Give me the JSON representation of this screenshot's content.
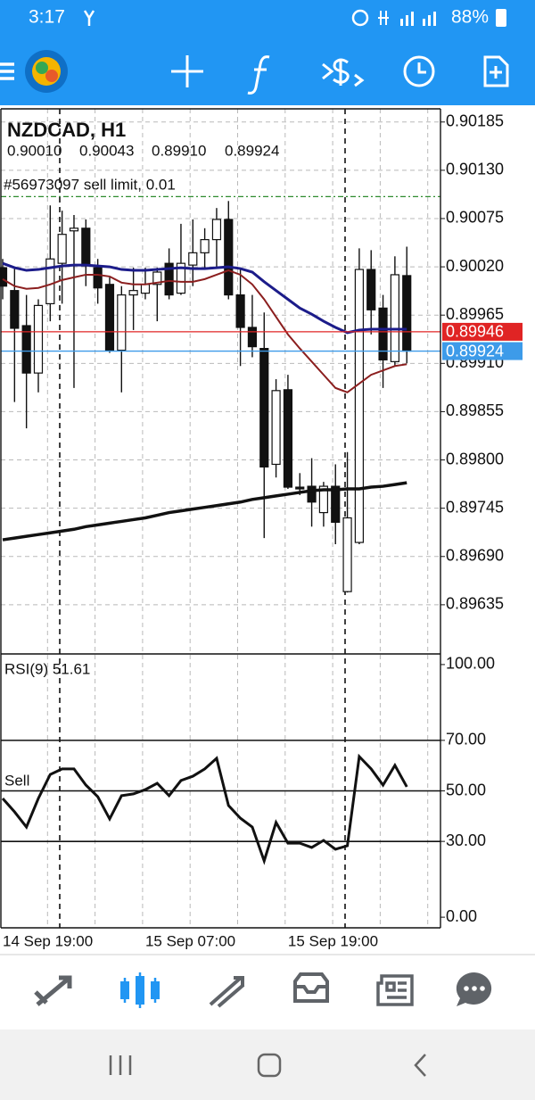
{
  "status_bar": {
    "time": "3:17",
    "battery": "88%"
  },
  "chart": {
    "type": "candlestick",
    "title": "NZDCAD, H1",
    "ohlc_labels": [
      "0.90010",
      "0.90043",
      "0.89910",
      "0.89924"
    ],
    "order_label": "#56973097 sell limit, 0.01",
    "order_price": 0.901,
    "ylim": [
      0.8958,
      0.902
    ],
    "yticks": [
      0.90185,
      {
        "value": 0.9013,
        "label": "0.90130"
      },
      0.90075,
      {
        "value": 0.9002,
        "label": "0.90020"
      },
      0.89965,
      {
        "value": 0.8991,
        "label": "0.89910"
      },
      0.89855,
      {
        "value": 0.898,
        "label": "0.89800"
      },
      0.89745,
      {
        "value": 0.8969,
        "label": "0.89690"
      },
      0.89635
    ],
    "grid": true,
    "categories": [
      "14 Sep 19:00",
      null,
      null,
      null,
      null,
      null,
      null,
      null,
      null,
      null,
      null,
      null,
      "15 Sep 07:00",
      null,
      null,
      null,
      null,
      null,
      null,
      null,
      null,
      null,
      null,
      null,
      "15 Sep 19:00",
      null,
      null,
      null,
      null,
      null,
      null,
      null,
      null,
      null,
      null
    ],
    "open": [
      0.90019,
      0.89993,
      0.89953,
      0.89899,
      0.89978,
      0.90024,
      0.90061,
      0.90064,
      0.90019,
      0.9,
      0.89925,
      0.89988,
      0.8999,
      0.9,
      0.90024,
      0.8999,
      0.90022,
      0.90036,
      0.90051,
      0.90074,
      0.89988,
      0.89951,
      0.89927,
      0.89795,
      0.8988,
      0.89769,
      0.8977,
      0.8974,
      0.8977,
      0.8965,
      0.89706,
      0.90017,
      0.89973,
      0.89912,
      0.9001
    ],
    "high": [
      0.90029,
      0.90019,
      0.89988,
      0.89983,
      0.9009,
      0.90084,
      0.90079,
      0.90074,
      0.90029,
      0.90008,
      0.89998,
      0.90019,
      0.90019,
      0.90019,
      0.90041,
      0.90069,
      0.90074,
      0.90064,
      0.90087,
      0.90095,
      0.90019,
      0.89988,
      0.89968,
      0.89892,
      0.89897,
      0.89785,
      0.89802,
      0.89775,
      0.89795,
      0.89809,
      0.90041,
      0.90039,
      0.89988,
      0.90032,
      0.90043
    ],
    "low": [
      0.89983,
      0.89866,
      0.89836,
      0.89877,
      0.89958,
      0.89978,
      0.89882,
      0.89998,
      0.89978,
      0.89922,
      0.89877,
      0.89948,
      0.89983,
      0.89958,
      0.89983,
      0.89988,
      0.89998,
      0.90019,
      0.90019,
      0.89983,
      0.89907,
      0.89917,
      0.89711,
      0.8978,
      0.89767,
      0.8976,
      0.89724,
      0.89724,
      0.89704,
      0.89649,
      0.89704,
      0.89943,
      0.89882,
      0.89907,
      0.8991
    ],
    "close": [
      0.89998,
      0.8995,
      0.89899,
      0.89976,
      0.90029,
      0.90057,
      0.90064,
      0.90021,
      0.89996,
      0.89925,
      0.89988,
      0.89993,
      0.9,
      0.90014,
      0.89988,
      0.90024,
      0.90036,
      0.90051,
      0.90074,
      0.89988,
      0.89951,
      0.89929,
      0.89792,
      0.89879,
      0.89769,
      0.89767,
      0.89752,
      0.8977,
      0.89729,
      0.89734,
      0.90017,
      0.89971,
      0.89914,
      0.90011,
      0.89924
    ],
    "moving_averages": [
      {
        "color": "#1c1c8a",
        "values": [
          0.90024,
          0.90019,
          0.90016,
          0.90017,
          0.90019,
          0.90021,
          0.90022,
          0.90022,
          0.90021,
          0.9002,
          0.90017,
          0.90016,
          0.90016,
          0.90017,
          0.90018,
          0.90019,
          0.90018,
          0.90018,
          0.90019,
          0.9002,
          0.90018,
          0.90014,
          0.90003,
          0.89993,
          0.89983,
          0.89973,
          0.89966,
          0.89958,
          0.89951,
          0.89945,
          0.89948,
          0.89949,
          0.89949,
          0.89949,
          0.89949
        ]
      },
      {
        "color": "#8b1e1e",
        "values": [
          0.90006,
          0.89998,
          0.89995,
          0.89996,
          0.9,
          0.90005,
          0.90008,
          0.90011,
          0.90011,
          0.90009,
          0.90002,
          0.9,
          0.9,
          0.90002,
          0.90004,
          0.90003,
          0.90003,
          0.90006,
          0.90011,
          0.90016,
          0.90011,
          0.9,
          0.89983,
          0.89963,
          0.89943,
          0.89927,
          0.89912,
          0.89897,
          0.89882,
          0.89877,
          0.89887,
          0.89897,
          0.89902,
          0.89907,
          0.89909
        ]
      },
      {
        "color": "#111111",
        "values": [
          0.89709,
          0.89711,
          0.89713,
          0.89715,
          0.89717,
          0.89719,
          0.89721,
          0.89724,
          0.89726,
          0.89728,
          0.8973,
          0.89732,
          0.89734,
          0.89737,
          0.8974,
          0.89742,
          0.89744,
          0.89746,
          0.89748,
          0.8975,
          0.89752,
          0.89755,
          0.89757,
          0.89759,
          0.89761,
          0.89763,
          0.89765,
          0.89766,
          0.89766,
          0.89767,
          0.89767,
          0.89769,
          0.8977,
          0.89772,
          0.89774
        ]
      }
    ],
    "price_tags": [
      {
        "value": 0.89946,
        "color": "#e02424"
      },
      {
        "value": 0.89924,
        "color": "#3d9be9"
      }
    ]
  },
  "rsi": {
    "label": "RSI(9) 51.61",
    "annotation": "Sell",
    "ylim": [
      -4.2,
      103.5
    ],
    "yticks": [
      {
        "value": 100,
        "label": "100.00"
      },
      {
        "value": 70,
        "label": "70.00"
      },
      {
        "value": 50,
        "label": "50.00"
      },
      {
        "value": 30,
        "label": "30.00"
      },
      {
        "value": 0,
        "label": "0.00"
      }
    ],
    "color": "#111111",
    "values": [
      47.0,
      41.7,
      35.7,
      47.0,
      56.5,
      58.7,
      58.7,
      52.3,
      47.7,
      38.9,
      48.1,
      48.8,
      50.5,
      53.0,
      48.1,
      54.1,
      55.8,
      58.7,
      62.9,
      44.2,
      39.2,
      35.7,
      22.3,
      37.5,
      29.3,
      29.3,
      27.6,
      30.4,
      26.9,
      28.3,
      63.6,
      58.7,
      52.3,
      60.1,
      51.61
    ]
  }
}
